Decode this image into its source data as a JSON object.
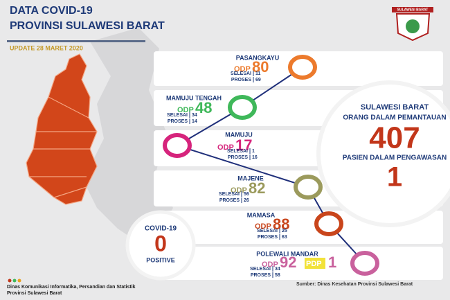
{
  "header": {
    "title_line1": "DATA COVID-19",
    "title_line2": "PROVINSI SULAWESI BARAT",
    "update": "UPDATE 28 MARET 2020",
    "logo_text": "SULAWESI BARAT"
  },
  "labels": {
    "odp": "ODP",
    "pdp": "PDP",
    "selesai": "SELESAI",
    "proses": "PROSES"
  },
  "regions": [
    {
      "name": "PASANGKAYU",
      "odp": 80,
      "selesai": 11,
      "proses": 69,
      "color": "#ec7a2c"
    },
    {
      "name": "MAMUJU TENGAH",
      "odp": 48,
      "selesai": 34,
      "proses": 14,
      "color": "#3fb85a"
    },
    {
      "name": "MAMUJU",
      "odp": 17,
      "selesai": 1,
      "proses": 16,
      "color": "#d6247c"
    },
    {
      "name": "MAJENE",
      "odp": 82,
      "selesai": 56,
      "proses": 26,
      "color": "#9b9a5c"
    },
    {
      "name": "MAMASA",
      "odp": 88,
      "selesai": 25,
      "proses": 63,
      "color": "#c9451b"
    },
    {
      "name": "POLEWALI MANDAR",
      "odp": 92,
      "pdp": 1,
      "selesai": 34,
      "proses": 58,
      "color": "#c9619d"
    }
  ],
  "summary": {
    "province": "SULAWESI BARAT",
    "odp_label": "ORANG DALAM PEMANTAUAN",
    "odp_total": 407,
    "pdp_label": "PASIEN DALAM PENGAWASAN",
    "pdp_total": 1
  },
  "positive": {
    "label": "COVID-19",
    "value": 0,
    "caption": "POSITIVE"
  },
  "footer": {
    "agency_line1": "Dinas Komunikasi Informatika, Persandian dan Statistik",
    "agency_line2": "Provinsi Sulawesi Barat",
    "source": "Sumber: Dinas Kesehatan Provinsi Sulawesi Barat"
  }
}
